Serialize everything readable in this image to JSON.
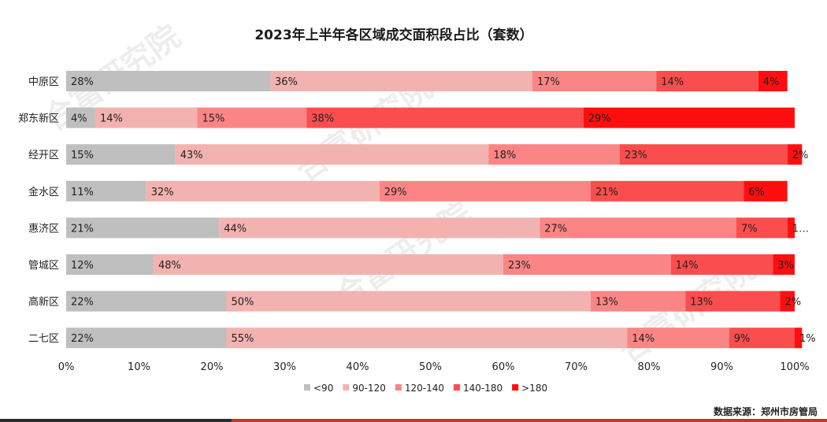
{
  "chart_data": {
    "type": "bar",
    "orientation": "horizontal",
    "stacked": true,
    "title": "2023年上半年各区域成交面积段占比（套数）",
    "source": "数据来源：郑州市房管局",
    "categories": [
      "中原区",
      "郑东新区",
      "经开区",
      "金水区",
      "惠济区",
      "管城区",
      "高新区",
      "二七区"
    ],
    "series": [
      {
        "name": "<90",
        "color": "#bfbfbf",
        "values": [
          28,
          4,
          15,
          11,
          21,
          12,
          22,
          22
        ]
      },
      {
        "name": "90-120",
        "color": "#f2b3b0",
        "values": [
          36,
          14,
          43,
          32,
          44,
          48,
          50,
          55
        ]
      },
      {
        "name": "120-140",
        "color": "#fb8585",
        "values": [
          17,
          15,
          18,
          29,
          27,
          23,
          13,
          14
        ]
      },
      {
        "name": "140-180",
        "color": "#fa4d4d",
        "values": [
          14,
          38,
          23,
          21,
          7,
          14,
          13,
          9
        ]
      },
      {
        "name": ">180",
        "color": "#fe0f0f",
        "values": [
          4,
          29,
          2,
          6,
          1,
          3,
          2,
          1
        ]
      }
    ],
    "data_labels": [
      [
        "28%",
        "36%",
        "17%",
        "14%",
        "4%"
      ],
      [
        "4%",
        "14%",
        "15%",
        "38%",
        "29%"
      ],
      [
        "15%",
        "43%",
        "18%",
        "23%",
        "2%"
      ],
      [
        "11%",
        "32%",
        "29%",
        "21%",
        "6%"
      ],
      [
        "21%",
        "44%",
        "27%",
        "7%",
        "1…"
      ],
      [
        "12%",
        "48%",
        "23%",
        "14%",
        "3%"
      ],
      [
        "22%",
        "50%",
        "13%",
        "13%",
        "2%"
      ],
      [
        "22%",
        "55%",
        "14%",
        "9%",
        "1%"
      ]
    ],
    "xlim": [
      0,
      100
    ],
    "x_ticks": [
      "0%",
      "10%",
      "20%",
      "30%",
      "40%",
      "50%",
      "60%",
      "70%",
      "80%",
      "90%",
      "100%"
    ],
    "grid": false,
    "legend_position": "bottom",
    "watermark": "合富研究院"
  }
}
